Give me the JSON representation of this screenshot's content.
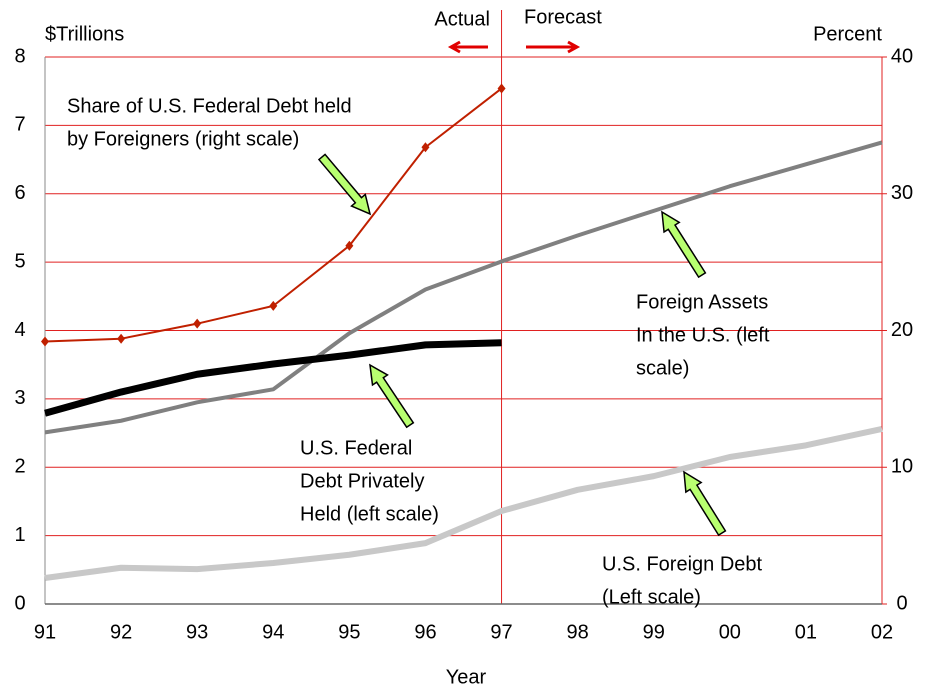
{
  "chart_data": {
    "type": "line",
    "y_label": "$Trillions",
    "y2_label": "Percent",
    "x_label": "Year",
    "annotations": [
      "Actual",
      "Forecast"
    ],
    "categories": [
      "91",
      "92",
      "93",
      "94",
      "95",
      "96",
      "97",
      "98",
      "99",
      "00",
      "01",
      "02"
    ],
    "ylim": [
      0,
      8
    ],
    "yticks": [
      0,
      1,
      2,
      3,
      4,
      5,
      6,
      7,
      8
    ],
    "y2lim": [
      0,
      40
    ],
    "y2ticks": [
      0,
      10,
      20,
      30,
      40
    ],
    "grid": true,
    "grid_color": "#e02020",
    "series": [
      {
        "label": [
          "Share of U.S. Federal Debt held",
          "by Foreigners (right scale)"
        ],
        "color": "#c02000",
        "axis": "y2",
        "marker": "diamond",
        "width": 2,
        "values": [
          19.2,
          19.4,
          20.5,
          21.8,
          26.2,
          33.4,
          37.7,
          null,
          null,
          null,
          null,
          null
        ]
      },
      {
        "label": [
          "U.S. Federal",
          "Debt Privately",
          "Held (left scale)"
        ],
        "color": "#000000",
        "axis": "y",
        "width": 7,
        "values": [
          2.79,
          3.1,
          3.36,
          3.51,
          3.64,
          3.79,
          3.82,
          null,
          null,
          null,
          null,
          null
        ]
      },
      {
        "label": [
          "Foreign Assets",
          "In the U.S. (left",
          "scale)"
        ],
        "color": "#808080",
        "axis": "y",
        "width": 4,
        "values": [
          2.51,
          2.68,
          2.95,
          3.14,
          3.96,
          4.6,
          5.01,
          5.39,
          5.75,
          6.11,
          6.43,
          6.75
        ]
      },
      {
        "label": [
          "U.S. Foreign Debt",
          "(Left scale)"
        ],
        "color": "#c8c8c8",
        "axis": "y",
        "width": 6,
        "values": [
          0.38,
          0.53,
          0.51,
          0.6,
          0.72,
          0.89,
          1.36,
          1.67,
          1.87,
          2.15,
          2.32,
          2.56
        ]
      }
    ]
  }
}
